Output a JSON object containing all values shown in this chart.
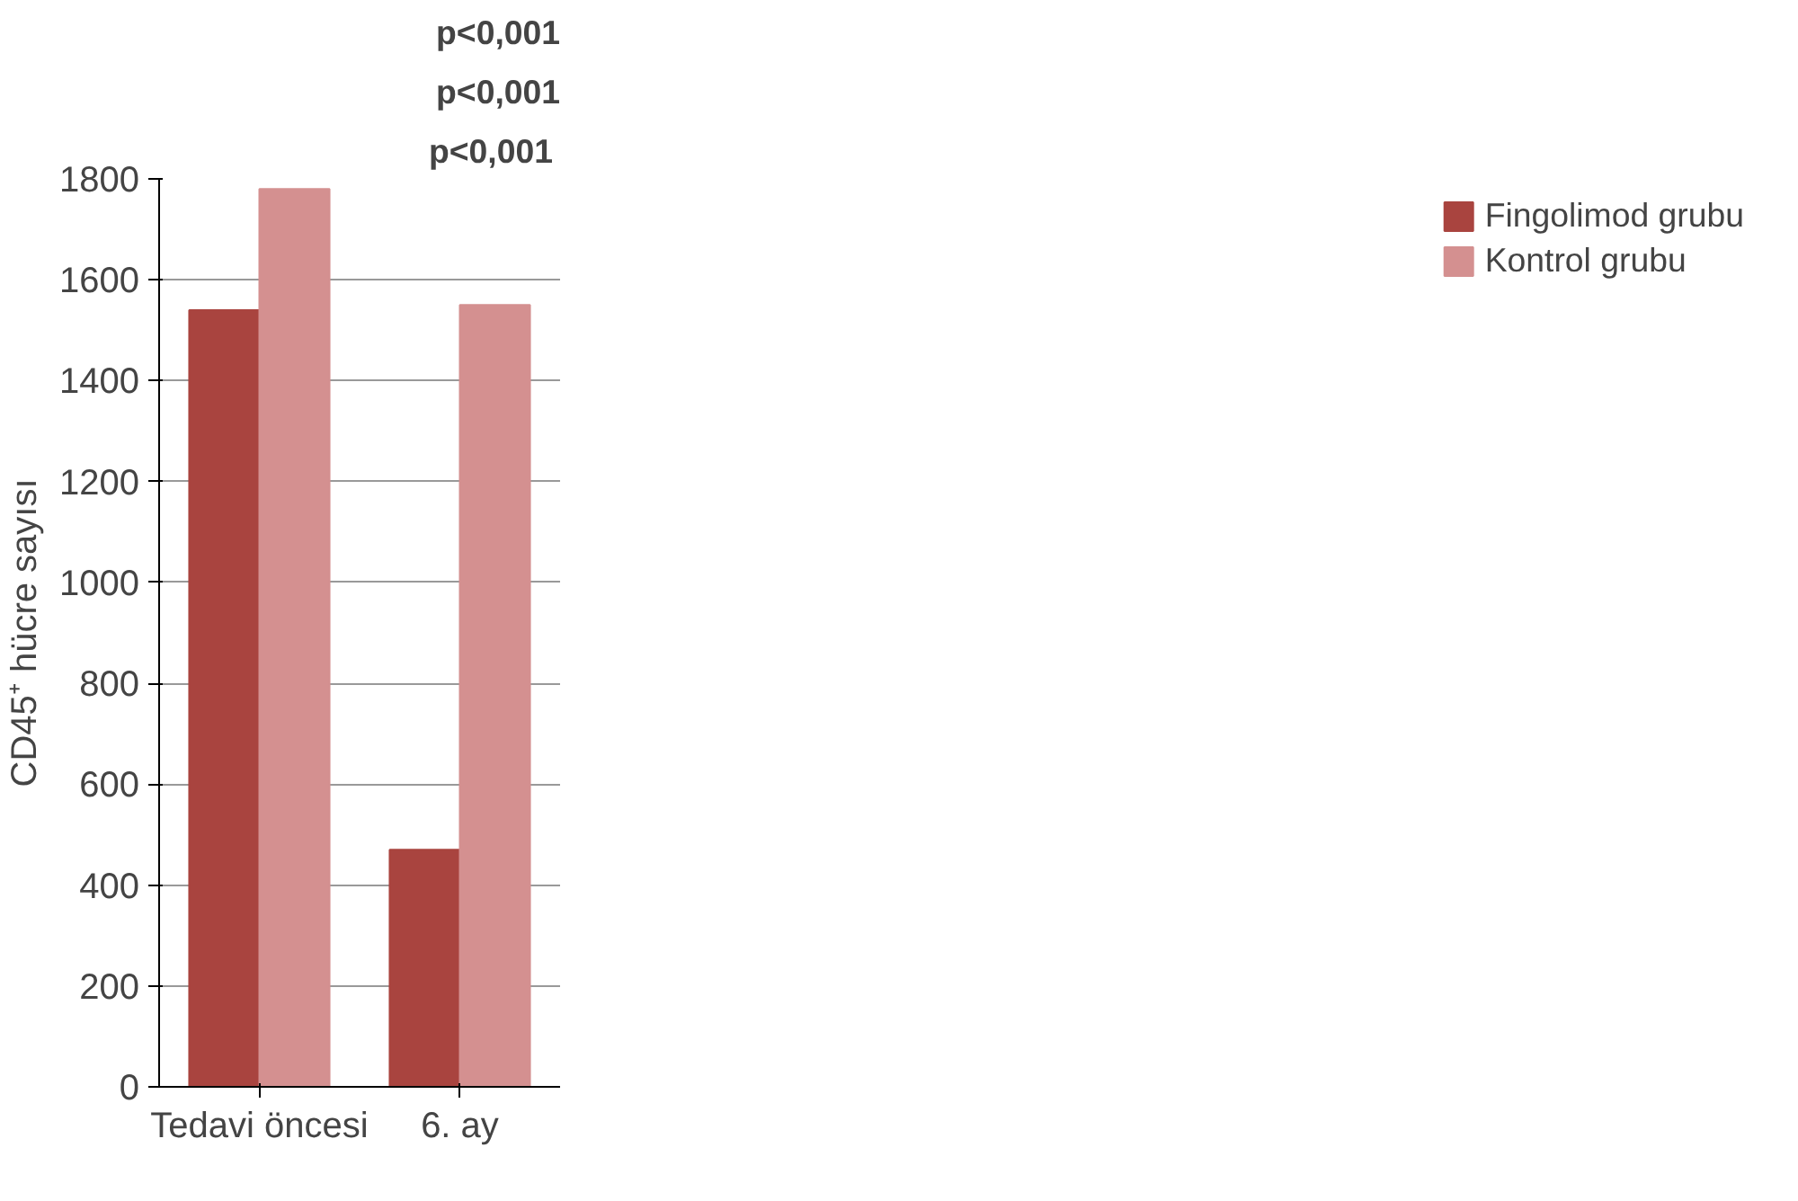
{
  "chart_data": {
    "type": "bar",
    "categories": [
      "Tedavi öncesi",
      "6. ay"
    ],
    "series": [
      {
        "name": "Fingolimod grubu",
        "color": "#a9443f",
        "values": [
          1540,
          470
        ]
      },
      {
        "name": "Kontrol grubu",
        "color": "#d49090",
        "values": [
          1780,
          1550
        ]
      }
    ],
    "ylabel": "CD45⁺ hücre sayısı",
    "ylim": [
      0,
      1800
    ],
    "yticks": [
      0,
      200,
      400,
      600,
      800,
      1000,
      1200,
      1400,
      1600,
      1800
    ],
    "grid": "y",
    "legend": "right",
    "annotations": [
      "p<0,001",
      "p<0,001",
      "p<0,001"
    ]
  }
}
